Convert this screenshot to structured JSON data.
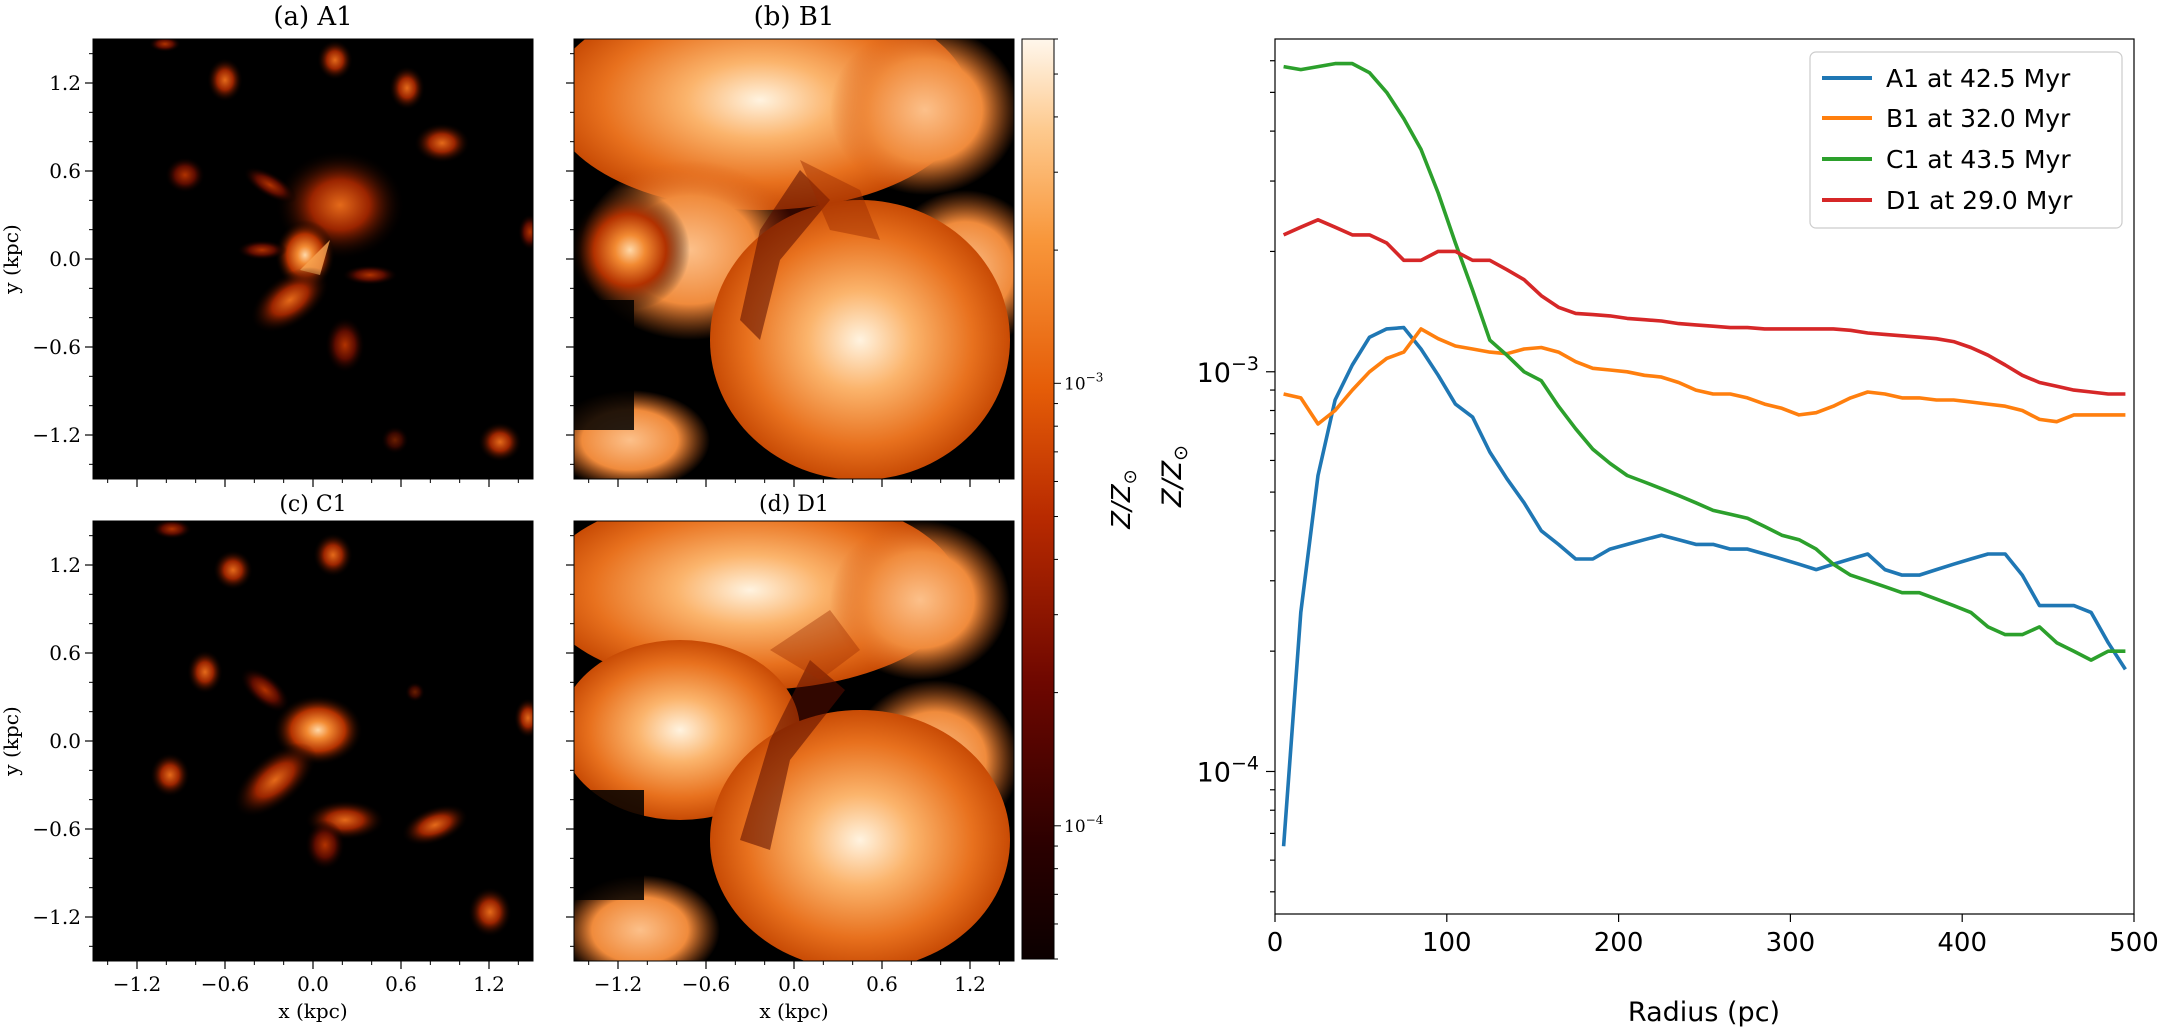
{
  "colors": {
    "a1": "#1f77b4",
    "b1": "#ff7f0e",
    "c1": "#2ca02c",
    "d1": "#d62728",
    "cmap_low": "#0d0000",
    "cmap_mid": "#cc3a00",
    "cmap_high": "#fff6ea"
  },
  "chart_data": [
    {
      "type": "heatmap",
      "title": "(a)  A1",
      "run": "A1",
      "xlabel": "",
      "ylabel": "y (kpc)",
      "xlim": [
        -1.5,
        1.5
      ],
      "ylim": [
        -1.5,
        1.5
      ],
      "xticks": [],
      "yticks": [
        "-1.2",
        "-0.6",
        "0.0",
        "0.6",
        "1.2"
      ],
      "background": "#000000"
    },
    {
      "type": "heatmap",
      "title": "(b)  B1",
      "run": "B1",
      "xlabel": "",
      "ylabel": "",
      "xlim": [
        -1.5,
        1.5
      ],
      "ylim": [
        -1.5,
        1.5
      ],
      "xticks": [],
      "yticks": []
    },
    {
      "type": "heatmap",
      "title": "(c)  C1",
      "run": "C1",
      "xlabel": "x (kpc)",
      "ylabel": "y (kpc)",
      "xlim": [
        -1.5,
        1.5
      ],
      "ylim": [
        -1.5,
        1.5
      ],
      "xticks": [
        "-1.2",
        "-0.6",
        "0.0",
        "0.6",
        "1.2"
      ],
      "yticks": [
        "-1.2",
        "-0.6",
        "0.0",
        "0.6",
        "1.2"
      ]
    },
    {
      "type": "heatmap",
      "title": "(d)  D1",
      "run": "D1",
      "xlabel": "x (kpc)",
      "ylabel": "",
      "xlim": [
        -1.5,
        1.5
      ],
      "ylim": [
        -1.5,
        1.5
      ],
      "xticks": [
        "-1.2",
        "-0.6",
        "0.0",
        "0.6",
        "1.2"
      ],
      "yticks": []
    },
    {
      "type": "colorbar",
      "label": "Z/Z",
      "label_sub": "⊙",
      "scale": "log",
      "range": [
        5e-05,
        0.006
      ],
      "tick_labels": [
        {
          "value": 0.001,
          "mantissa": "10",
          "exp": "−3"
        },
        {
          "value": 0.0001,
          "mantissa": "10",
          "exp": "−4"
        }
      ]
    },
    {
      "type": "line",
      "title": "",
      "xlabel": "Radius (pc)",
      "ylabel": "Z/Z",
      "ylabel_sub": "⊙",
      "yscale": "log",
      "xlim": [
        0,
        500
      ],
      "ylim": [
        4.4e-05,
        0.0068
      ],
      "xticks": [
        0,
        100,
        200,
        300,
        400,
        500
      ],
      "yticks": [
        {
          "value": 0.001,
          "mantissa": "10",
          "exp": "−3"
        },
        {
          "value": 0.0001,
          "mantissa": "10",
          "exp": "−4"
        }
      ],
      "legend_position": "top-right",
      "x": [
        5,
        15,
        25,
        35,
        45,
        55,
        65,
        75,
        85,
        95,
        105,
        115,
        125,
        135,
        145,
        155,
        165,
        175,
        185,
        195,
        205,
        215,
        225,
        235,
        245,
        255,
        265,
        275,
        285,
        295,
        305,
        315,
        325,
        335,
        345,
        355,
        365,
        375,
        385,
        395,
        405,
        415,
        425,
        435,
        445,
        455,
        465,
        475,
        485,
        495
      ],
      "series": [
        {
          "name": "A1 at 42.5 Myr",
          "color_key": "a1",
          "values": [
            6.5e-05,
            0.00025,
            0.00055,
            0.00085,
            0.00104,
            0.00122,
            0.00128,
            0.00129,
            0.00114,
            0.00098,
            0.00083,
            0.00077,
            0.00063,
            0.00054,
            0.00047,
            0.0004,
            0.00037,
            0.00034,
            0.00034,
            0.00036,
            0.00037,
            0.00038,
            0.00039,
            0.00038,
            0.00037,
            0.00037,
            0.00036,
            0.00036,
            0.00035,
            0.00034,
            0.00033,
            0.00032,
            0.00033,
            0.00034,
            0.00035,
            0.00032,
            0.00031,
            0.00031,
            0.00032,
            0.00033,
            0.00034,
            0.00035,
            0.00035,
            0.00031,
            0.00026,
            0.00026,
            0.00026,
            0.00025,
            0.00021,
            0.00018
          ]
        },
        {
          "name": "B1 at 32.0 Myr",
          "color_key": "b1",
          "values": [
            0.00088,
            0.00086,
            0.00074,
            0.0008,
            0.0009,
            0.001,
            0.00108,
            0.00112,
            0.00128,
            0.00121,
            0.00116,
            0.00114,
            0.00112,
            0.00111,
            0.00114,
            0.00115,
            0.00112,
            0.00106,
            0.00102,
            0.00101,
            0.001,
            0.00098,
            0.00097,
            0.00094,
            0.0009,
            0.00088,
            0.00088,
            0.00086,
            0.00083,
            0.00081,
            0.00078,
            0.00079,
            0.00082,
            0.00086,
            0.00089,
            0.00088,
            0.00086,
            0.00086,
            0.00085,
            0.00085,
            0.00084,
            0.00083,
            0.00082,
            0.0008,
            0.00076,
            0.00075,
            0.00078,
            0.00078,
            0.00078,
            0.00078
          ]
        },
        {
          "name": "C1 at 43.5 Myr",
          "color_key": "c1",
          "values": [
            0.0058,
            0.0057,
            0.0058,
            0.0059,
            0.0059,
            0.0056,
            0.005,
            0.0043,
            0.0036,
            0.0028,
            0.0021,
            0.0016,
            0.0012,
            0.0011,
            0.001,
            0.00095,
            0.00082,
            0.00072,
            0.00064,
            0.00059,
            0.00055,
            0.00053,
            0.00051,
            0.00049,
            0.00047,
            0.00045,
            0.00044,
            0.00043,
            0.00041,
            0.00039,
            0.00038,
            0.00036,
            0.00033,
            0.00031,
            0.0003,
            0.00029,
            0.00028,
            0.00028,
            0.00027,
            0.00026,
            0.00025,
            0.00023,
            0.00022,
            0.00022,
            0.00023,
            0.00021,
            0.0002,
            0.00019,
            0.0002,
            0.0002
          ]
        },
        {
          "name": "D1 at 29.0 Myr",
          "color_key": "d1",
          "values": [
            0.0022,
            0.0023,
            0.0024,
            0.0023,
            0.0022,
            0.0022,
            0.0021,
            0.0019,
            0.0019,
            0.002,
            0.002,
            0.0019,
            0.0019,
            0.0018,
            0.0017,
            0.00155,
            0.00145,
            0.0014,
            0.00139,
            0.00138,
            0.00136,
            0.00135,
            0.00134,
            0.00132,
            0.00131,
            0.0013,
            0.00129,
            0.00129,
            0.00128,
            0.00128,
            0.00128,
            0.00128,
            0.00128,
            0.00127,
            0.00125,
            0.00124,
            0.00123,
            0.00122,
            0.00121,
            0.00119,
            0.00115,
            0.0011,
            0.00104,
            0.00098,
            0.00094,
            0.00092,
            0.0009,
            0.00089,
            0.00088,
            0.00088
          ]
        }
      ]
    }
  ]
}
